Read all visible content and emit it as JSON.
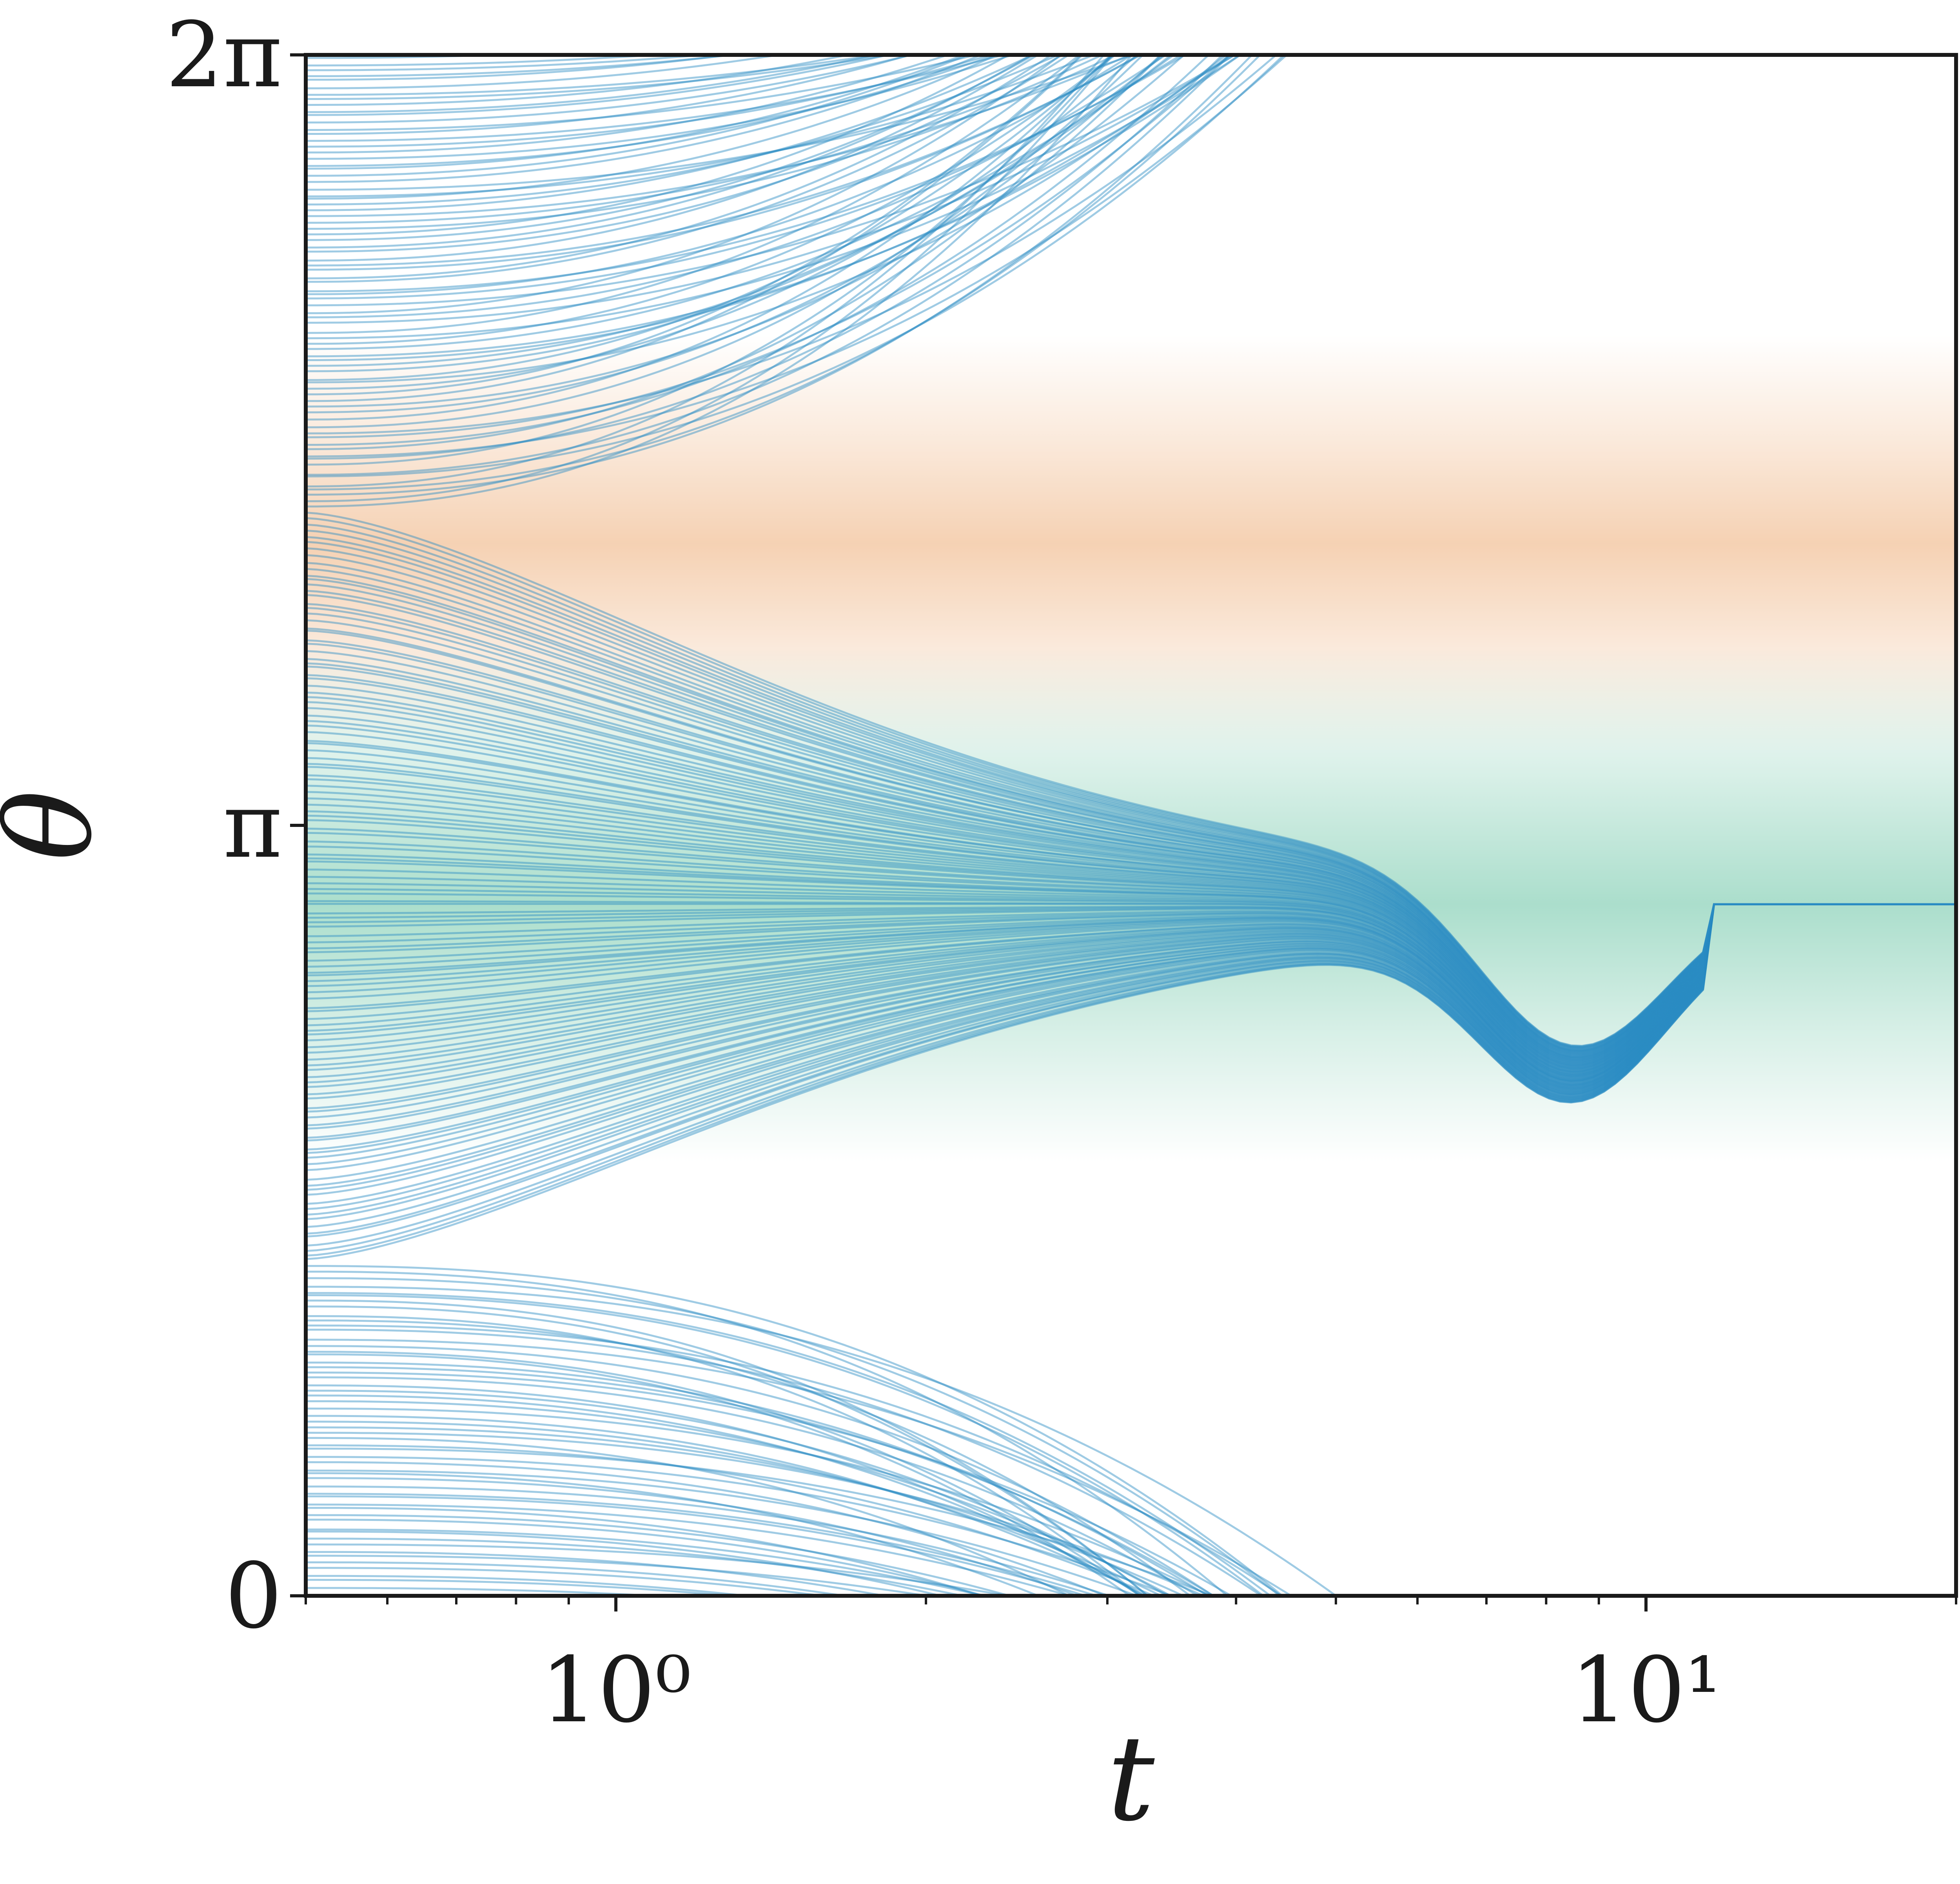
{
  "chart_data": {
    "type": "line",
    "title": "",
    "xlabel": "t",
    "ylabel": "θ",
    "x_scale": "log",
    "xlim": [
      0.5,
      20
    ],
    "ylim": [
      0,
      6.283185
    ],
    "x_ticks": [
      {
        "value": 1,
        "label": "10⁰"
      },
      {
        "value": 10,
        "label": "10¹"
      }
    ],
    "y_ticks": [
      {
        "value": 0,
        "label": "0"
      },
      {
        "value": 3.141593,
        "label": "π"
      },
      {
        "value": 6.283185,
        "label": "2π"
      }
    ],
    "grid": false,
    "legend": "none",
    "line_color": "#2b8cc4",
    "background_bands": [
      {
        "center": 4.29,
        "halfwidth": 0.85,
        "color": "#f2c29a"
      },
      {
        "center": 2.82,
        "halfwidth": 1.05,
        "color": "#8fd3bb"
      }
    ],
    "trajectories": {
      "count": 260,
      "initial_theta_range": [
        0,
        6.283185
      ],
      "final_theta": 2.82,
      "escape_bounds": [
        0,
        6.283185
      ],
      "converge_time": 11.5,
      "dip_theta": 2.1,
      "dip_time": 8.5
    }
  }
}
